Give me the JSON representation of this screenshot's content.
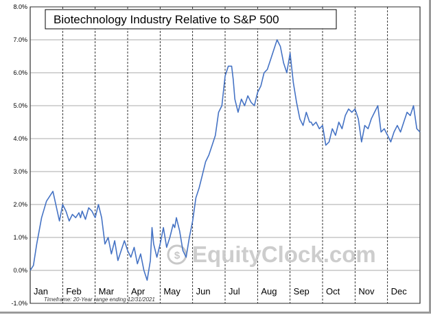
{
  "chart_data": {
    "type": "line",
    "title": "Biotechnology Industry Relative to S&P 500",
    "xlabel": "",
    "ylabel": "",
    "ylim": [
      -1.0,
      8.0
    ],
    "yticks": [
      "8.0%",
      "7.0%",
      "6.0%",
      "5.0%",
      "4.0%",
      "3.0%",
      "2.0%",
      "1.0%",
      "0.0%",
      "-1.0%"
    ],
    "ytick_values": [
      8,
      7,
      6,
      5,
      4,
      3,
      2,
      1,
      0,
      -1
    ],
    "months": [
      "Jan",
      "Feb",
      "Mar",
      "Apr",
      "May",
      "Jun",
      "Jul",
      "Aug",
      "Sep",
      "Oct",
      "Nov",
      "Dec"
    ],
    "grid": true,
    "line_color": "#4472c4",
    "footnote": "Timeframe: 20-Year range ending 12/31/2021",
    "watermark": "EquityClock.com",
    "series": [
      {
        "x": [
          0.0,
          0.1,
          0.2,
          0.35,
          0.5,
          0.7,
          0.9,
          1.0,
          1.1,
          1.2,
          1.3,
          1.4,
          1.5,
          1.55,
          1.6,
          1.7,
          1.8,
          1.9,
          2.0,
          2.1,
          2.2,
          2.3,
          2.4,
          2.5,
          2.6,
          2.7,
          2.8,
          2.9,
          3.0,
          3.1,
          3.2,
          3.3,
          3.4,
          3.5,
          3.6,
          3.7,
          3.75,
          3.8,
          3.9,
          4.0,
          4.1,
          4.2,
          4.3,
          4.4,
          4.45,
          4.5,
          4.6,
          4.7,
          4.8,
          4.9,
          5.0,
          5.1,
          5.2,
          5.3,
          5.4,
          5.5,
          5.6,
          5.7,
          5.8,
          5.9,
          6.0,
          6.1,
          6.2,
          6.25,
          6.3,
          6.4,
          6.5,
          6.6,
          6.7,
          6.8,
          6.9,
          7.0,
          7.1,
          7.2,
          7.3,
          7.4,
          7.5,
          7.6,
          7.7,
          7.8,
          7.9,
          8.0,
          8.1,
          8.2,
          8.3,
          8.4,
          8.5,
          8.6,
          8.65,
          8.7,
          8.8,
          8.9,
          9.0,
          9.1,
          9.2,
          9.3,
          9.4,
          9.5,
          9.6,
          9.7,
          9.8,
          9.9,
          10.0,
          10.1,
          10.2,
          10.3,
          10.4,
          10.5,
          10.6,
          10.7,
          10.8,
          10.9,
          11.0,
          11.1,
          11.2,
          11.3,
          11.4,
          11.5,
          11.6,
          11.7,
          11.8,
          11.9,
          12.0
        ],
        "y": [
          0.0,
          0.15,
          0.8,
          1.6,
          2.1,
          2.4,
          1.5,
          2.0,
          1.8,
          1.5,
          1.7,
          1.6,
          1.75,
          1.6,
          1.8,
          1.55,
          1.9,
          1.8,
          1.6,
          2.0,
          1.6,
          0.8,
          1.0,
          0.5,
          0.9,
          0.3,
          0.6,
          0.9,
          0.6,
          0.4,
          0.7,
          0.2,
          0.5,
          0.0,
          -0.3,
          0.3,
          1.3,
          0.8,
          0.4,
          0.8,
          1.3,
          0.7,
          1.0,
          1.4,
          1.3,
          1.6,
          1.2,
          0.6,
          0.4,
          1.0,
          1.5,
          2.2,
          2.5,
          2.9,
          3.3,
          3.5,
          3.8,
          4.1,
          4.8,
          5.0,
          5.9,
          6.2,
          6.2,
          5.8,
          5.2,
          4.8,
          5.2,
          5.0,
          5.3,
          5.1,
          5.0,
          5.4,
          5.6,
          6.0,
          6.1,
          6.4,
          6.7,
          7.0,
          6.8,
          6.3,
          6.0,
          6.6,
          5.7,
          5.1,
          4.6,
          4.4,
          4.8,
          4.5,
          4.5,
          4.4,
          4.5,
          4.3,
          4.4,
          3.8,
          3.9,
          4.3,
          4.1,
          4.5,
          4.3,
          4.7,
          4.9,
          4.8,
          4.9,
          4.6,
          3.9,
          4.4,
          4.3,
          4.6,
          4.8,
          5.0,
          4.2,
          4.3,
          4.1,
          3.9,
          4.2,
          4.4,
          4.2,
          4.5,
          4.8,
          4.7,
          5.0,
          4.3,
          4.2
        ]
      }
    ]
  }
}
